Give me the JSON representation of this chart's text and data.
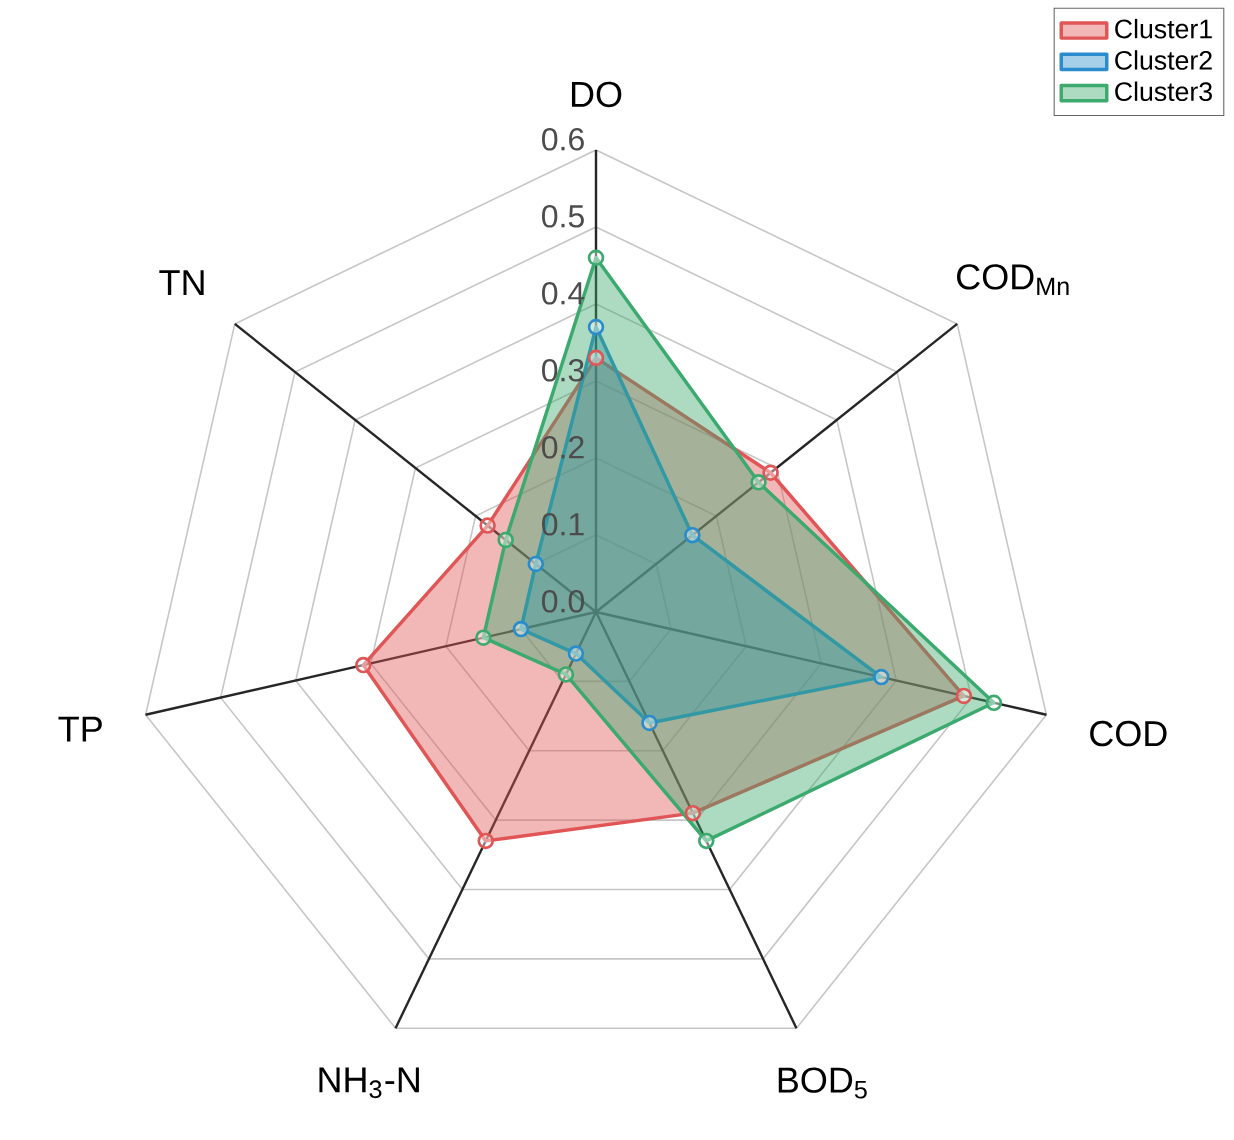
{
  "chart_data": {
    "type": "radar",
    "categories": [
      "DO",
      "COD$_{Mn}$",
      "COD",
      "BOD$_{5}$",
      "NH$_{3}$-N",
      "TP",
      "TN"
    ],
    "series": [
      {
        "name": "Cluster1",
        "color": "#e05555",
        "values": [
          0.33,
          0.29,
          0.49,
          0.29,
          0.33,
          0.31,
          0.18
        ]
      },
      {
        "name": "Cluster2",
        "color": "#2a8ccc",
        "values": [
          0.37,
          0.16,
          0.38,
          0.16,
          0.06,
          0.1,
          0.1
        ]
      },
      {
        "name": "Cluster3",
        "color": "#3caa6e",
        "values": [
          0.46,
          0.27,
          0.53,
          0.33,
          0.09,
          0.15,
          0.15
        ]
      }
    ],
    "ylim": [
      0,
      0.6
    ],
    "yticks": [
      {
        "value": 0,
        "label": "0.0"
      },
      0.1,
      0.2,
      0.3,
      0.4,
      0.5,
      0.6
    ],
    "grid": true,
    "legend": "top right",
    "marker": "circle"
  }
}
